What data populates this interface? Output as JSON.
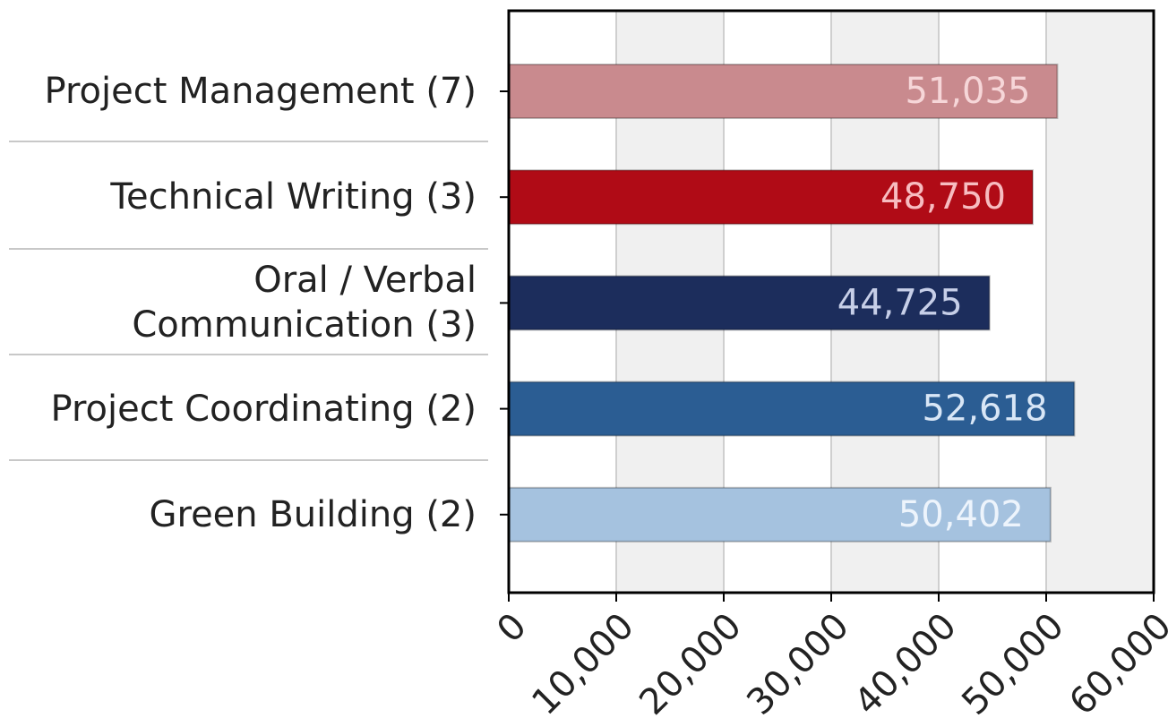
{
  "chart_data": {
    "type": "hbar",
    "categories": [
      "Project Management (7)",
      "Technical Writing (3)",
      "Oral / Verbal\nCommunication (3)",
      "Project Coordinating (2)",
      "Green Building (2)"
    ],
    "values": [
      51035,
      48750,
      44725,
      52618,
      50402
    ],
    "value_labels": [
      "51,035",
      "48,750",
      "44,725",
      "52,618",
      "50,402"
    ],
    "colors": [
      "#c98a8e",
      "#b00b16",
      "#1c2d5c",
      "#2b5d93",
      "#a5c2df"
    ],
    "label_colors": [
      "#f6d6d8",
      "#f7bcc0",
      "#c7cfe8",
      "#d8e6f6",
      "#edf4fc"
    ],
    "xlim": [
      0,
      60000
    ],
    "xticks": [
      0,
      {
        "value": 10000,
        "label": "10,000"
      },
      {
        "value": 20000,
        "label": "20,000"
      },
      {
        "value": 30000,
        "label": "30,000"
      },
      {
        "value": 40000,
        "label": "40,000"
      },
      {
        "value": 50000,
        "label": "50,000"
      },
      {
        "value": 60000,
        "label": "60,000"
      }
    ],
    "grid": true
  }
}
